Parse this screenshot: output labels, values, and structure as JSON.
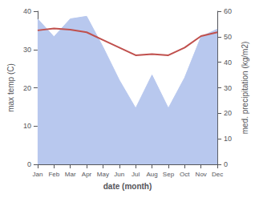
{
  "chart_data": {
    "type": "line",
    "categories": [
      "Jan",
      "Feb",
      "Mar",
      "Apr",
      "May",
      "Jun",
      "Jul",
      "Aug",
      "Sep",
      "Oct",
      "Nov",
      "Dec"
    ],
    "series": [
      {
        "type": "area",
        "axis": "y2",
        "color": "#b8c8ee",
        "values": [
          57,
          50,
          57,
          58,
          46,
          33,
          22,
          35,
          22,
          34,
          50,
          53
        ]
      },
      {
        "type": "line",
        "color": "#c0504d",
        "values": [
          35,
          35.5,
          35.2,
          34.5,
          32.5,
          30.5,
          28.5,
          28.8,
          28.5,
          30.5,
          33.5,
          34.5
        ]
      }
    ],
    "xlabel": "date (month)",
    "ylabel": "max temp (C)",
    "y2label": "med. precipitation (kg/m2)",
    "ylim": [
      0,
      40
    ],
    "yticks": [
      0,
      10,
      20,
      30,
      40
    ],
    "y2lim": [
      0,
      60
    ],
    "y2ticks": [
      0,
      10,
      20,
      30,
      40,
      50,
      60
    ],
    "grid": false
  }
}
